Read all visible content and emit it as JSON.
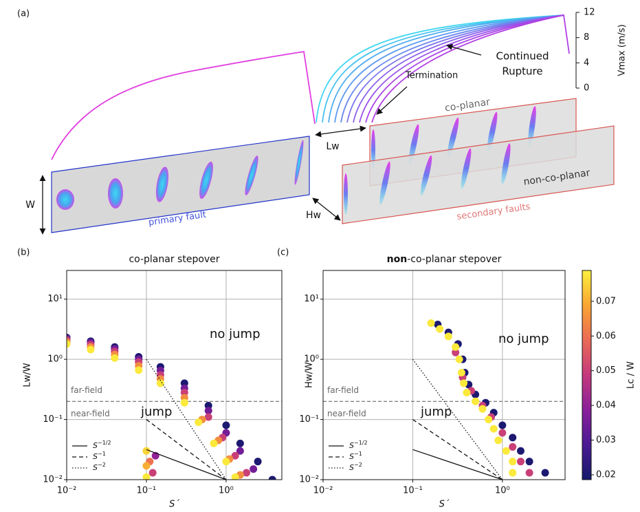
{
  "diagram": {
    "panel": "(a)",
    "termination": "Termination",
    "continued": [
      "Continued",
      "Rupture"
    ],
    "co_planar": "co-planar",
    "non_co_planar": "non-co-planar",
    "secondary": "secondary faults",
    "primary": "primary fault",
    "lw": "Lw",
    "hw": "Hw",
    "w": "W",
    "vmax_label": "Vmax (m/s)",
    "vmax_lim": [
      0,
      12
    ],
    "vmax_ticks": [
      0,
      4,
      8,
      12
    ]
  },
  "chart_data": [
    {
      "type": "scatter",
      "panel": "(b)",
      "title": "co-planar stepover",
      "xlabel": "S´",
      "ylabel": "Lw/W",
      "xscale": "log",
      "yscale": "log",
      "xlim": [
        0.01,
        5
      ],
      "ylim": [
        0.01,
        30
      ],
      "xticks": [
        {
          "value": 0.01,
          "label": "10⁻²"
        },
        {
          "value": 0.1,
          "label": "10⁻¹"
        },
        {
          "value": 1,
          "label": "10⁰"
        }
      ],
      "yticks": [
        {
          "value": 0.01,
          "label": "10⁻²"
        },
        {
          "value": 0.1,
          "label": "10⁻¹"
        },
        {
          "value": 1,
          "label": "10⁰"
        },
        {
          "value": 10,
          "label": "10¹"
        }
      ],
      "grid": true,
      "x": [
        0.01,
        0.02,
        0.04,
        0.08,
        0.15,
        0.3,
        0.6,
        1,
        1.5,
        2.5,
        3.8,
        0.01,
        0.02,
        0.04,
        0.08,
        0.15,
        0.3,
        0.6,
        1,
        1.5,
        2.2,
        0.01,
        0.02,
        0.04,
        0.08,
        0.15,
        0.3,
        0.6,
        0.9,
        1.3,
        1.8,
        0.01,
        0.02,
        0.04,
        0.08,
        0.15,
        0.3,
        0.5,
        0.8,
        1.1,
        1.5,
        0.01,
        0.02,
        0.04,
        0.08,
        0.15,
        0.3,
        0.45,
        0.7,
        1.0,
        1.3,
        0.1,
        0.11,
        0.12,
        0.1,
        0.13,
        0.1
      ],
      "y": [
        2.3,
        2.0,
        1.6,
        1.1,
        0.75,
        0.4,
        0.17,
        0.08,
        0.04,
        0.02,
        0.01,
        2.2,
        1.9,
        1.5,
        1.0,
        0.65,
        0.33,
        0.14,
        0.06,
        0.03,
        0.015,
        2.1,
        1.75,
        1.35,
        0.9,
        0.55,
        0.28,
        0.11,
        0.05,
        0.025,
        0.013,
        1.95,
        1.6,
        1.2,
        0.78,
        0.47,
        0.23,
        0.1,
        0.045,
        0.022,
        0.012,
        1.8,
        1.45,
        1.05,
        0.66,
        0.4,
        0.19,
        0.09,
        0.04,
        0.02,
        0.011,
        0.03,
        0.02,
        0.013,
        0.011,
        0.025,
        0.017
      ],
      "c": [
        0.02,
        0.02,
        0.02,
        0.02,
        0.02,
        0.02,
        0.02,
        0.02,
        0.02,
        0.02,
        0.02,
        0.035,
        0.035,
        0.035,
        0.035,
        0.035,
        0.035,
        0.035,
        0.035,
        0.035,
        0.035,
        0.05,
        0.05,
        0.05,
        0.05,
        0.05,
        0.05,
        0.05,
        0.05,
        0.05,
        0.05,
        0.065,
        0.065,
        0.065,
        0.065,
        0.065,
        0.065,
        0.065,
        0.065,
        0.065,
        0.065,
        0.078,
        0.078,
        0.078,
        0.078,
        0.078,
        0.078,
        0.078,
        0.078,
        0.078,
        0.078,
        0.075,
        0.06,
        0.05,
        0.078,
        0.04,
        0.07
      ],
      "colormap": [
        "#14196b",
        "#4a1a93",
        "#8a1f9a",
        "#c43a7d",
        "#ea6a56",
        "#f9a532",
        "#fbf03c"
      ],
      "clim": [
        0.0186,
        0.0789
      ],
      "hline": 0.2,
      "annotations": {
        "far": "far-field",
        "near": "near-field",
        "nojump": "no jump",
        "jump": "jump"
      },
      "reference_lines": [
        {
          "label": "S",
          "exponent": "−1/2",
          "dash": "solid",
          "x": [
            0.1,
            1
          ],
          "y": [
            0.0316,
            0.01
          ]
        },
        {
          "label": "S",
          "exponent": "−1",
          "dash": "dashed",
          "x": [
            0.1,
            1
          ],
          "y": [
            0.1,
            0.01
          ]
        },
        {
          "label": "S",
          "exponent": "−2",
          "dash": "dotted",
          "x": [
            0.1,
            1
          ],
          "y": [
            1,
            0.01
          ]
        }
      ]
    },
    {
      "type": "scatter",
      "panel": "(c)",
      "title_bold": "non",
      "title": "-co-planar stepover",
      "xlabel": "S´",
      "ylabel": "Hw/W",
      "xscale": "log",
      "yscale": "log",
      "xlim": [
        0.01,
        5
      ],
      "ylim": [
        0.01,
        30
      ],
      "xticks": [
        {
          "value": 0.01,
          "label": "10⁻²"
        },
        {
          "value": 0.1,
          "label": "10⁻¹"
        },
        {
          "value": 1,
          "label": "10⁰"
        }
      ],
      "yticks": [
        {
          "value": 0.01,
          "label": "10⁻²"
        },
        {
          "value": 0.1,
          "label": "10⁻¹"
        },
        {
          "value": 1,
          "label": "10⁰"
        },
        {
          "value": 10,
          "label": "10¹"
        }
      ],
      "grid": true,
      "x": [
        0.19,
        0.25,
        0.32,
        0.36,
        0.38,
        0.42,
        0.5,
        0.65,
        0.8,
        1.0,
        1.3,
        1.6,
        2,
        3,
        0.3,
        0.36,
        0.45,
        0.6,
        0.75,
        1.0,
        1.3,
        1.6,
        2.0,
        0.16,
        0.2,
        0.25,
        0.3,
        0.33,
        0.35,
        0.37,
        0.4,
        0.5,
        0.6,
        0.7,
        0.8,
        0.9,
        1.1,
        1.3,
        1.3
      ],
      "y": [
        3.8,
        2.8,
        1.8,
        1.0,
        0.6,
        0.38,
        0.26,
        0.19,
        0.13,
        0.08,
        0.05,
        0.03,
        0.02,
        0.013,
        1.3,
        0.5,
        0.3,
        0.17,
        0.11,
        0.06,
        0.035,
        0.02,
        0.013,
        4.0,
        3.2,
        2.4,
        1.6,
        1.0,
        0.6,
        0.4,
        0.28,
        0.2,
        0.15,
        0.1,
        0.07,
        0.045,
        0.03,
        0.02,
        0.013
      ],
      "c": [
        0.02,
        0.02,
        0.02,
        0.02,
        0.02,
        0.02,
        0.02,
        0.02,
        0.02,
        0.02,
        0.02,
        0.02,
        0.02,
        0.02,
        0.05,
        0.05,
        0.05,
        0.05,
        0.05,
        0.05,
        0.05,
        0.05,
        0.05,
        0.078,
        0.078,
        0.078,
        0.078,
        0.078,
        0.078,
        0.078,
        0.078,
        0.078,
        0.078,
        0.078,
        0.078,
        0.078,
        0.078,
        0.078,
        0.078
      ],
      "colormap": [
        "#14196b",
        "#4a1a93",
        "#8a1f9a",
        "#c43a7d",
        "#ea6a56",
        "#f9a532",
        "#fbf03c"
      ],
      "clim": [
        0.0186,
        0.0789
      ],
      "colorbar": {
        "label": "Lc / W",
        "ticks": [
          0.02,
          0.03,
          0.04,
          0.05,
          0.06,
          0.07
        ]
      },
      "hline": 0.2,
      "annotations": {
        "far": "far-field",
        "near": "near-field",
        "nojump": "no jump",
        "jump": "jump"
      },
      "reference_lines": [
        {
          "label": "S",
          "exponent": "−1/2",
          "dash": "solid",
          "x": [
            0.1,
            1
          ],
          "y": [
            0.0316,
            0.01
          ]
        },
        {
          "label": "S",
          "exponent": "−1",
          "dash": "dashed",
          "x": [
            0.1,
            1
          ],
          "y": [
            0.1,
            0.01
          ]
        },
        {
          "label": "S",
          "exponent": "−2",
          "dash": "dotted",
          "x": [
            0.1,
            1
          ],
          "y": [
            1,
            0.01
          ]
        }
      ]
    }
  ]
}
